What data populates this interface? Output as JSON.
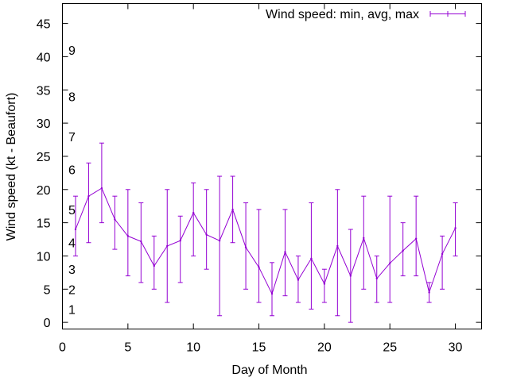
{
  "chart_data": {
    "type": "line",
    "title": "",
    "xlabel": "Day of Month",
    "ylabel": "Wind speed (kt - Beaufort)",
    "xlim": [
      0,
      32
    ],
    "ylim": [
      -1,
      48
    ],
    "x_ticks": [
      0,
      5,
      10,
      15,
      20,
      25,
      30
    ],
    "y_ticks": [
      0,
      5,
      10,
      15,
      20,
      25,
      30,
      35,
      40,
      45
    ],
    "beaufort_labels": [
      {
        "value": 1,
        "label": "1"
      },
      {
        "value": 2,
        "label": "2"
      },
      {
        "value": 3,
        "label": "3"
      },
      {
        "value": 4,
        "label": "4"
      },
      {
        "value": 5,
        "label": "5"
      },
      {
        "value": 6,
        "label": "6"
      },
      {
        "value": 7,
        "label": "7"
      },
      {
        "value": 8,
        "label": "8"
      },
      {
        "value": 9,
        "label": "9"
      }
    ],
    "beaufort_positions_kt": [
      2,
      5,
      8,
      12,
      17,
      23,
      28,
      34,
      41
    ],
    "legend_position": "top-right",
    "series": [
      {
        "name": "Wind speed: min, avg, max",
        "color": "#9400d3",
        "x": [
          1,
          2,
          3,
          4,
          5,
          6,
          7,
          8,
          9,
          10,
          11,
          12,
          13,
          14,
          15,
          16,
          17,
          18,
          19,
          20,
          21,
          22,
          23,
          24,
          25,
          26,
          27,
          28,
          29,
          30
        ],
        "avg": [
          14,
          19,
          20.2,
          15.5,
          13,
          12.2,
          8.5,
          11.5,
          12.3,
          16.5,
          13.2,
          12.3,
          17,
          11.3,
          8.3,
          4.3,
          10.6,
          6.4,
          9.6,
          5.8,
          11.5,
          7,
          12.7,
          6.6,
          8.9,
          10.8,
          12.6,
          4.5,
          10.3,
          14.2
        ],
        "min": [
          10,
          12,
          15,
          11,
          7,
          6,
          5,
          3,
          6,
          10,
          8,
          1,
          12,
          5,
          3,
          1,
          4,
          3,
          2,
          3,
          1,
          0,
          5,
          3,
          3,
          7,
          7,
          3,
          5,
          10
        ],
        "max": [
          19,
          24,
          27,
          19,
          20,
          18,
          13,
          20,
          16,
          21,
          20,
          22,
          22,
          18,
          17,
          9,
          17,
          10,
          18,
          8,
          20,
          14,
          19,
          10,
          19,
          15,
          19,
          6,
          13,
          18
        ]
      }
    ]
  }
}
